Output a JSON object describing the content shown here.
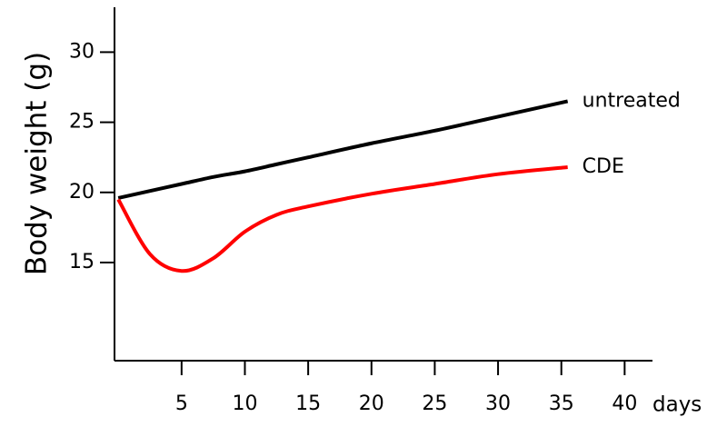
{
  "chart_data": {
    "type": "line",
    "y_label": "Body weight (g)",
    "x_label": "days",
    "x": [
      0,
      2.5,
      5,
      7.5,
      10,
      12.5,
      15,
      20,
      25,
      30,
      35.5
    ],
    "series": [
      {
        "name": "untreated",
        "color": "#000000",
        "values": [
          19.6,
          20.1,
          20.6,
          21.1,
          21.5,
          22.0,
          22.5,
          23.5,
          24.4,
          25.4,
          26.5
        ]
      },
      {
        "name": "CDE",
        "color": "#ff0000",
        "values": [
          19.5,
          15.6,
          14.4,
          15.3,
          17.2,
          18.4,
          19.0,
          19.9,
          20.6,
          21.3,
          21.8
        ]
      }
    ],
    "xlim": [
      -0.3,
      42.2
    ],
    "ylim": [
      8,
      33.2
    ],
    "xticks": [
      5,
      10,
      15,
      20,
      25,
      30,
      35,
      40
    ],
    "yticks": [
      15,
      20,
      25,
      30
    ]
  }
}
